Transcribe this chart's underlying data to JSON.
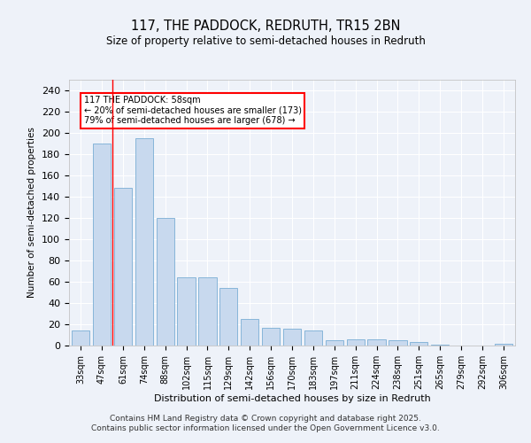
{
  "title": "117, THE PADDOCK, REDRUTH, TR15 2BN",
  "subtitle": "Size of property relative to semi-detached houses in Redruth",
  "xlabel": "Distribution of semi-detached houses by size in Redruth",
  "ylabel": "Number of semi-detached properties",
  "bar_color": "#c8d9ee",
  "bar_edge_color": "#7aadd4",
  "categories": [
    "33sqm",
    "47sqm",
    "61sqm",
    "74sqm",
    "88sqm",
    "102sqm",
    "115sqm",
    "129sqm",
    "142sqm",
    "156sqm",
    "170sqm",
    "183sqm",
    "197sqm",
    "211sqm",
    "224sqm",
    "238sqm",
    "251sqm",
    "265sqm",
    "279sqm",
    "292sqm",
    "306sqm"
  ],
  "values": [
    14,
    190,
    148,
    195,
    120,
    64,
    64,
    54,
    25,
    17,
    16,
    14,
    5,
    6,
    6,
    5,
    3,
    1,
    0,
    0,
    2
  ],
  "ylim": [
    0,
    250
  ],
  "yticks": [
    0,
    20,
    40,
    60,
    80,
    100,
    120,
    140,
    160,
    180,
    200,
    220,
    240
  ],
  "vline_x": 1.5,
  "annotation_text": "117 THE PADDOCK: 58sqm\n← 20% of semi-detached houses are smaller (173)\n79% of semi-detached houses are larger (678) →",
  "background_color": "#eef2f9",
  "grid_color": "#ffffff",
  "footer": "Contains HM Land Registry data © Crown copyright and database right 2025.\nContains public sector information licensed under the Open Government Licence v3.0."
}
